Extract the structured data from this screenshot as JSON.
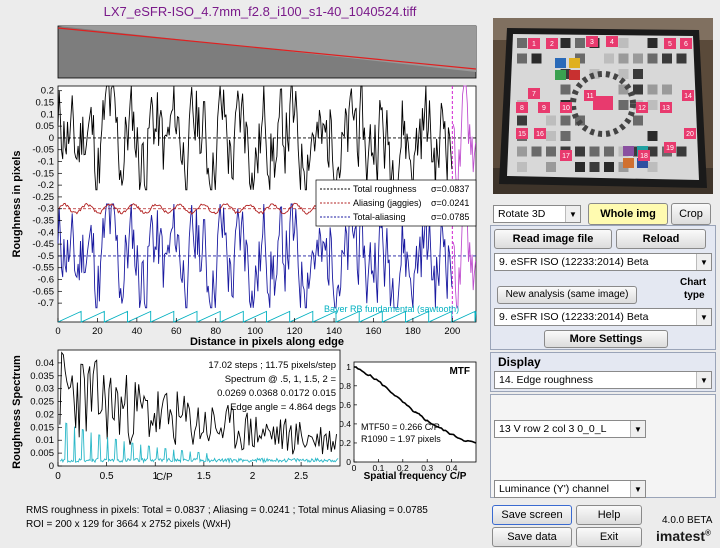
{
  "title": "LX7_eSFR-ISO_4.7mm_f2.8_i100_s1-40_1040524.tiff",
  "roughness_plot": {
    "ylabel": "Roughness in pixels",
    "xlabel": "Distance in pixels along edge",
    "yticks": [
      "0.2",
      "0.15",
      "0.1",
      "0.05",
      "0",
      "-0.05",
      "-0.1",
      "-0.15",
      "-0.2",
      "-0.25",
      "-0.3",
      "-0.35",
      "-0.4",
      "-0.45",
      "-0.5",
      "-0.55",
      "-0.6",
      "-0.65",
      "-0.7"
    ],
    "xticks": [
      "0",
      "20",
      "40",
      "60",
      "80",
      "100",
      "120",
      "140",
      "160",
      "180",
      "200"
    ],
    "legend": [
      {
        "label": "Total roughness",
        "sigma": "σ=0.0837",
        "color": "#000000"
      },
      {
        "label": "Aliasing (jaggies)",
        "sigma": "σ=0.0241",
        "color": "#b22222"
      },
      {
        "label": "Total-aliasing",
        "sigma": "σ=0.0785",
        "color": "#1a1aa0"
      }
    ],
    "bayer_label": "Bayer RB fundamental (sawtooth)"
  },
  "spectrum_plot": {
    "ylabel": "Roughness Spectrum",
    "yticks": [
      "0.04",
      "0.035",
      "0.03",
      "0.025",
      "0.02",
      "0.015",
      "0.01",
      "0.005",
      "0"
    ],
    "xticks": [
      "0",
      "0.5",
      "1",
      "1.5",
      "2",
      "2.5"
    ],
    "cp_label": "C/P",
    "info_lines": [
      "17.02 steps ;   11.75 pixels/step",
      "Spectrum @ .5, 1, 1.5, 2 =",
      "0.0269   0.0368   0.0172    0.015",
      "Edge angle = 4.864 degs"
    ]
  },
  "mtf_plot": {
    "title": "MTF",
    "xlabel": "Spatial frequency C/P",
    "yticks": [
      "1",
      "0.8",
      "0.6",
      "0.4",
      "0.2",
      "0"
    ],
    "xticks": [
      "0",
      "0.1",
      "0.2",
      "0.3",
      "0.4"
    ],
    "mtf50": "MTF50 = 0.266 C/P",
    "r1090": "R1090 = 1.97 pixels"
  },
  "summary": {
    "line1": "RMS roughness in pixels:   Total = 0.0837 ;   Aliasing = 0.0241 ;   Total minus Aliasing = 0.0785",
    "line2": "ROI = 200 x 129   for  3664 x 2752 pixels (WxH)"
  },
  "controls": {
    "rotate_select": "Rotate 3D",
    "whole_img": "Whole img",
    "crop": "Crop",
    "read_image": "Read image file",
    "reload": "Reload",
    "chart_select_top": "9. eSFR ISO  (12233:2014)  Beta",
    "chart_type_label_1": "Chart",
    "chart_type_label_2": "type",
    "new_analysis": "New analysis (same image)",
    "chart_select_bottom": "9. eSFR ISO  (12233:2014)  Beta",
    "more_settings": "More Settings",
    "display_label": "Display",
    "display_select": "14. Edge roughness",
    "roi_select": "13  V row 2 col 3   0_0_L",
    "channel_select": "Luminance (Y') channel",
    "save_screen": "Save screen",
    "help": "Help",
    "save_data": "Save data",
    "exit": "Exit",
    "version": "4.0.0 BETA",
    "brand": "imatest"
  },
  "chart_thumb_labels": [
    "1",
    "2",
    "3",
    "4",
    "5",
    "6",
    "7",
    "8",
    "9",
    "10",
    "11",
    "12",
    "13",
    "14",
    "15",
    "16",
    "17",
    "18",
    "19",
    "20"
  ],
  "colors": {
    "accent_purple": "#7a1a8a",
    "yellow_btn": "#fffbb0",
    "panel_bg": "#e4e8f2"
  },
  "chart_data": [
    {
      "type": "line",
      "ylabel": "Roughness in pixels",
      "xlabel": "Distance in pixels along edge",
      "xlim": [
        0,
        212
      ],
      "ylim": [
        -0.78,
        0.22
      ],
      "series": [
        {
          "name": "Total roughness",
          "values_note": "oscillating around 0, amplitude ~0.2"
        },
        {
          "name": "Aliasing (jaggies)",
          "values_note": "oscillating around -0.3, amplitude ~0.025"
        },
        {
          "name": "Total-aliasing",
          "values_note": "oscillating around -0.5, amplitude ~0.2"
        },
        {
          "name": "Bayer RB fundamental (sawtooth)",
          "values_note": "sawtooth between -0.78 and -0.74, period ~11.75"
        }
      ]
    },
    {
      "type": "line",
      "ylabel": "Roughness Spectrum",
      "x": [
        0,
        0.5,
        1,
        1.5,
        2
      ],
      "values": [
        0.035,
        0.0269,
        0.0368,
        0.0172,
        0.015
      ],
      "xlim": [
        0,
        2.9
      ],
      "ylim": [
        0,
        0.045
      ]
    },
    {
      "type": "line",
      "title": "MTF",
      "xlabel": "Spatial frequency C/P",
      "x": [
        0,
        0.05,
        0.1,
        0.15,
        0.2,
        0.25,
        0.266,
        0.3,
        0.35,
        0.4,
        0.45,
        0.5
      ],
      "values": [
        1.0,
        0.93,
        0.85,
        0.74,
        0.63,
        0.52,
        0.5,
        0.43,
        0.36,
        0.29,
        0.23,
        0.2
      ],
      "xlim": [
        0,
        0.5
      ],
      "ylim": [
        0,
        1.05
      ]
    }
  ]
}
